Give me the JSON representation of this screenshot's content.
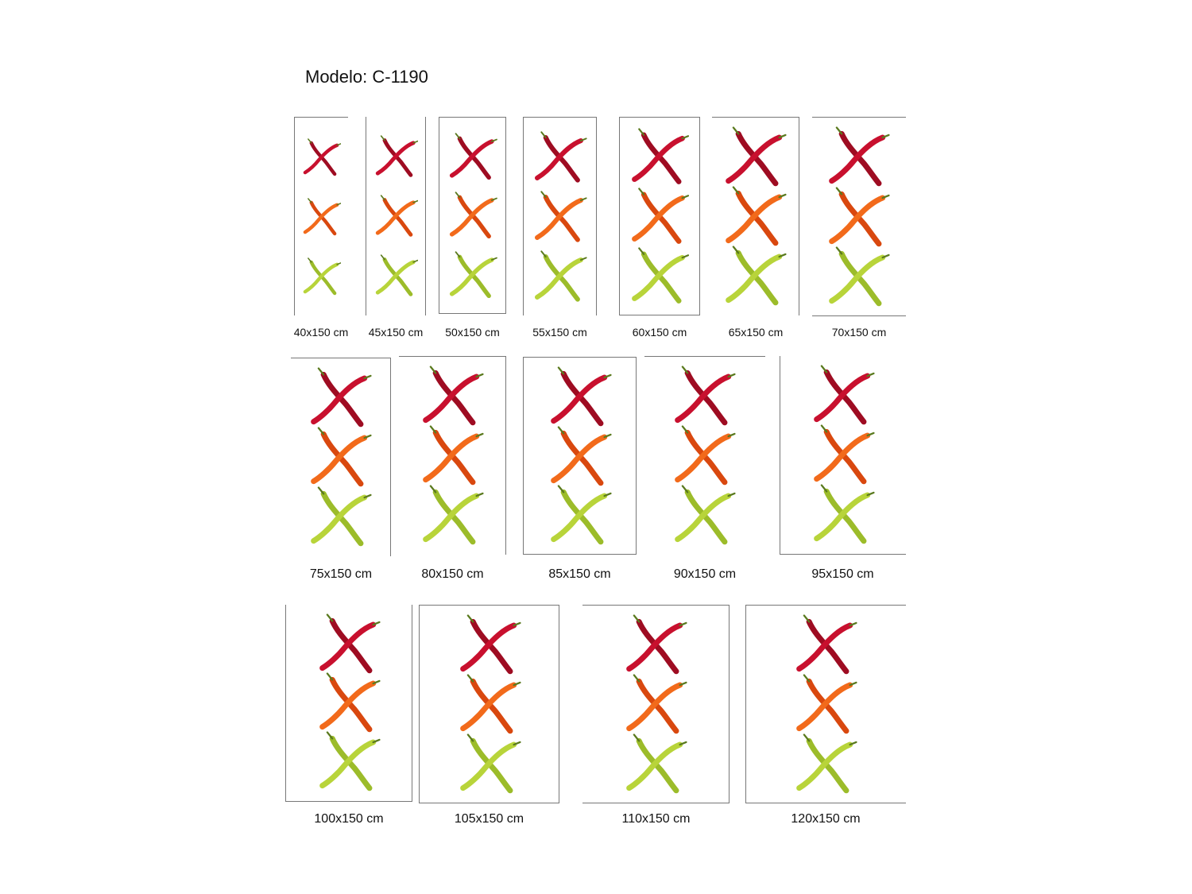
{
  "title": "Modelo: C-1190",
  "colors": {
    "red": "#c8102e",
    "orange": "#f26a1b",
    "green": "#b8d43a",
    "stem": "#5a7a1e",
    "border": "#777777"
  },
  "sizes": [
    "40x150 cm",
    "45x150 cm",
    "50x150 cm",
    "55x150 cm",
    "60x150 cm",
    "65x150 cm",
    "70x150 cm",
    "75x150 cm",
    "80x150 cm",
    "85x150 cm",
    "90x150 cm",
    "95x150 cm",
    "100x150 cm",
    "105x150 cm",
    "110x150 cm",
    "120x150 cm"
  ]
}
